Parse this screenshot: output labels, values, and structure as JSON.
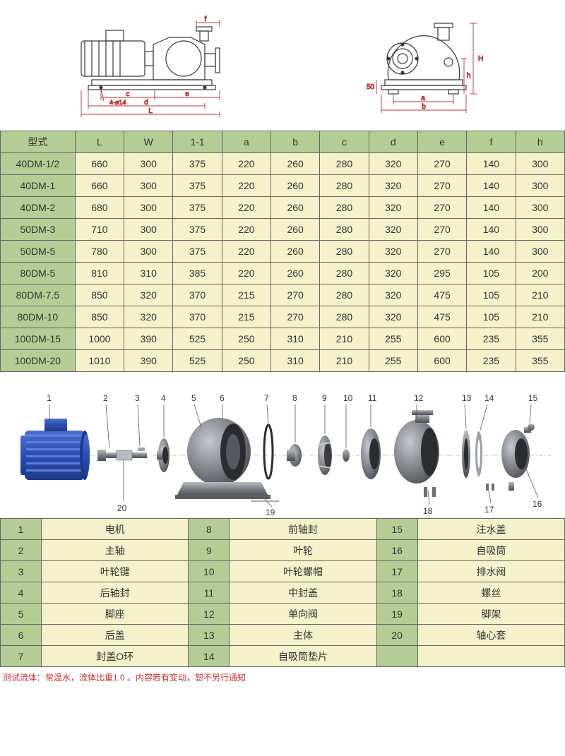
{
  "colors": {
    "header_bg": "#b4cd94",
    "row_bg": "#f4f1cb",
    "border": "#666666",
    "footnote": "#d03030",
    "diagram_stroke": "#3a3a3a",
    "diagram_dim": "#c03030",
    "motor_blue": "#2b4db0",
    "motor_blue_dark": "#1c3a8a",
    "part_grey": "#6a6d72",
    "part_grey_light": "#9ea2a8",
    "part_grey_dark": "#4a4d52"
  },
  "dim_table": {
    "headers": [
      "型式",
      "L",
      "W",
      "1-1",
      "a",
      "b",
      "c",
      "d",
      "e",
      "f",
      "h"
    ],
    "rows": [
      [
        "40DM-1/2",
        "660",
        "300",
        "375",
        "220",
        "260",
        "280",
        "320",
        "270",
        "140",
        "300"
      ],
      [
        "40DM-1",
        "660",
        "300",
        "375",
        "220",
        "260",
        "280",
        "320",
        "270",
        "140",
        "300"
      ],
      [
        "40DM-2",
        "680",
        "300",
        "375",
        "220",
        "260",
        "280",
        "320",
        "270",
        "140",
        "300"
      ],
      [
        "50DM-3",
        "710",
        "300",
        "375",
        "220",
        "260",
        "280",
        "320",
        "270",
        "140",
        "300"
      ],
      [
        "50DM-5",
        "780",
        "300",
        "375",
        "220",
        "260",
        "280",
        "320",
        "270",
        "140",
        "300"
      ],
      [
        "80DM-5",
        "810",
        "310",
        "385",
        "220",
        "260",
        "280",
        "320",
        "295",
        "105",
        "200"
      ],
      [
        "80DM-7.5",
        "850",
        "320",
        "370",
        "215",
        "270",
        "280",
        "320",
        "475",
        "105",
        "210"
      ],
      [
        "80DM-10",
        "850",
        "320",
        "370",
        "215",
        "270",
        "280",
        "320",
        "475",
        "105",
        "210"
      ],
      [
        "100DM-15",
        "1000",
        "390",
        "525",
        "250",
        "310",
        "210",
        "255",
        "600",
        "235",
        "355"
      ],
      [
        "100DM-20",
        "1010",
        "390",
        "525",
        "250",
        "310",
        "210",
        "255",
        "600",
        "235",
        "355"
      ]
    ]
  },
  "diagram_labels": {
    "left": [
      "f",
      "c",
      "e",
      "d",
      "L",
      "4-ø14"
    ],
    "right": [
      "H",
      "h",
      "a",
      "b",
      "50"
    ]
  },
  "exploded_callouts_top": [
    "1",
    "2",
    "3",
    "4",
    "5",
    "6",
    "7",
    "8",
    "9",
    "10",
    "11",
    "12",
    "13",
    "14",
    "15"
  ],
  "exploded_callouts_bottom": [
    "20",
    "19",
    "18",
    "17",
    "16"
  ],
  "parts_table": {
    "rows": [
      [
        "1",
        "电机",
        "8",
        "前轴封",
        "15",
        "注水盖"
      ],
      [
        "2",
        "主轴",
        "9",
        "叶轮",
        "16",
        "自吸筒"
      ],
      [
        "3",
        "叶轮键",
        "10",
        "叶轮螺帽",
        "17",
        "排水阀"
      ],
      [
        "4",
        "后轴封",
        "11",
        "中封盖",
        "18",
        "螺丝"
      ],
      [
        "5",
        "脚座",
        "12",
        "单向阀",
        "19",
        "脚架"
      ],
      [
        "6",
        "后盖",
        "13",
        "主体",
        "20",
        "轴心套"
      ],
      [
        "7",
        "封盖O环",
        "14",
        "自吸筒垫片",
        "",
        ""
      ]
    ]
  },
  "footnote": "测试流体：常温水，流体比重1.0 。内容若有变动，恕不另行通知"
}
